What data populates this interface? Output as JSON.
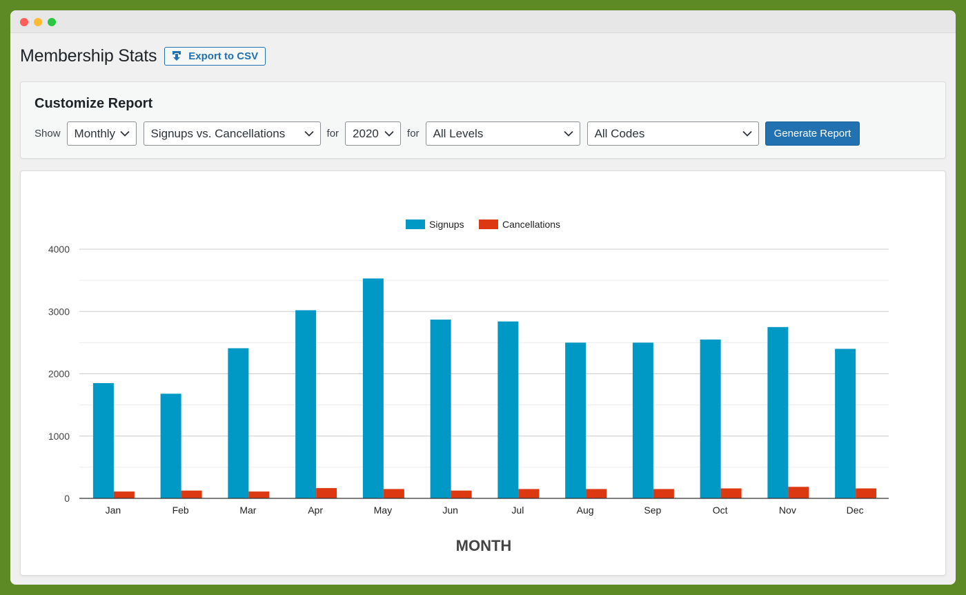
{
  "window": {
    "controls": [
      "close",
      "minimize",
      "zoom"
    ]
  },
  "page": {
    "title": "Membership Stats",
    "export_button": {
      "label": "Export to CSV",
      "icon": "download-icon"
    }
  },
  "report": {
    "title": "Customize Report",
    "show_label": "Show",
    "for_label_1": "for",
    "for_label_2": "for",
    "period_select": "Monthly",
    "type_select": "Signups vs. Cancellations",
    "year_select": "2020",
    "level_select": "All Levels",
    "code_select": "All Codes",
    "generate_button": "Generate Report"
  },
  "colors": {
    "accent": "#2271b1",
    "signups": "#0099c6",
    "cancellations": "#dc3912"
  },
  "chart_data": {
    "type": "bar",
    "categories": [
      "Jan",
      "Feb",
      "Mar",
      "Apr",
      "May",
      "Jun",
      "Jul",
      "Aug",
      "Sep",
      "Oct",
      "Nov",
      "Dec"
    ],
    "series": [
      {
        "name": "Signups",
        "color": "#0099c6",
        "values": [
          1850,
          1680,
          2410,
          3020,
          3530,
          2870,
          2840,
          2500,
          2500,
          2550,
          2750,
          2400
        ]
      },
      {
        "name": "Cancellations",
        "color": "#dc3912",
        "values": [
          110,
          125,
          110,
          165,
          150,
          125,
          150,
          150,
          150,
          160,
          185,
          160
        ]
      }
    ],
    "xlabel": "MONTH",
    "ylabel": "",
    "ylim": [
      0,
      4000
    ],
    "yticks": [
      0,
      1000,
      2000,
      3000,
      4000
    ],
    "grid": true,
    "legend": "top-center"
  }
}
